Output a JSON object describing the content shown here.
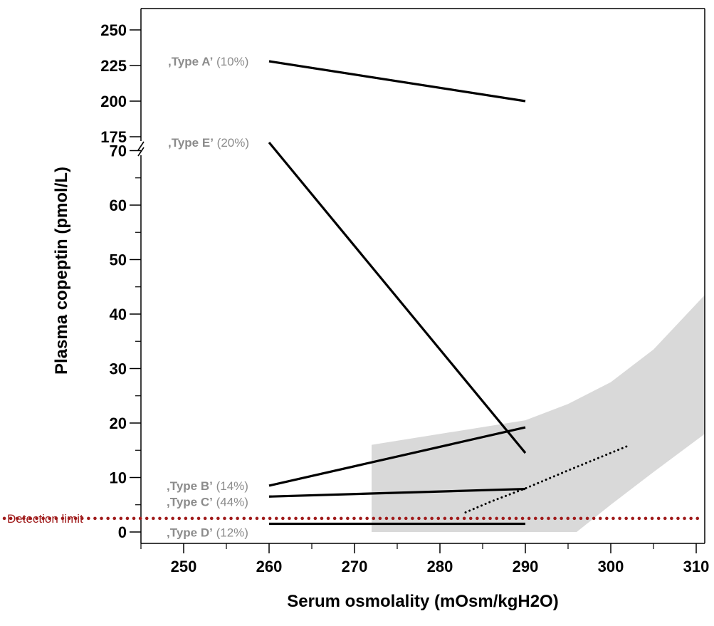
{
  "chart_data": {
    "type": "line",
    "xlabel": "Serum osmolality (mOsm/kgH2O)",
    "ylabel": "Plasma copeptin (pmol/L)",
    "xlim": [
      245,
      311
    ],
    "x_ticks": [
      250,
      260,
      270,
      280,
      290,
      300,
      310
    ],
    "y_ticks_lower": [
      0,
      10,
      20,
      30,
      40,
      50,
      60,
      70
    ],
    "y_ticks_upper": [
      175,
      200,
      225,
      250
    ],
    "y_axis_break": "between 70 and 175",
    "grid": false,
    "series": [
      {
        "name": ",Type A’",
        "pct": "(10%)",
        "x": [
          260,
          290
        ],
        "y": [
          228,
          200
        ]
      },
      {
        "name": ",Type E’",
        "pct": "(20%)",
        "x": [
          260,
          290
        ],
        "y": [
          71.5,
          14.5
        ]
      },
      {
        "name": ",Type B’",
        "pct": "(14%)",
        "x": [
          260,
          290
        ],
        "y": [
          8.5,
          19.2
        ]
      },
      {
        "name": ",Type C’",
        "pct": "(44%)",
        "x": [
          260,
          290
        ],
        "y": [
          6.5,
          7.9
        ]
      },
      {
        "name": ",Type D’",
        "pct": "(12%)",
        "x": [
          260,
          290
        ],
        "y": [
          1.5,
          1.5
        ]
      }
    ],
    "dotted_trend": {
      "x": [
        283,
        286,
        290,
        295,
        302
      ],
      "y": [
        3.6,
        5.6,
        8.0,
        11.3,
        15.8
      ]
    },
    "detection_limit": {
      "label": "Detection limit",
      "y": 2.5,
      "color": "#a01c1c"
    },
    "shaded_region": {
      "color": "#d9d9d9",
      "upper": {
        "x": [
          272,
          290,
          295,
          300,
          305,
          311
        ],
        "y": [
          16,
          20.5,
          23.5,
          27.5,
          33.5,
          43.5
        ]
      },
      "lower": {
        "x": [
          272,
          296,
          300,
          305,
          311
        ],
        "y": [
          0,
          0,
          5,
          11,
          18
        ]
      }
    }
  }
}
